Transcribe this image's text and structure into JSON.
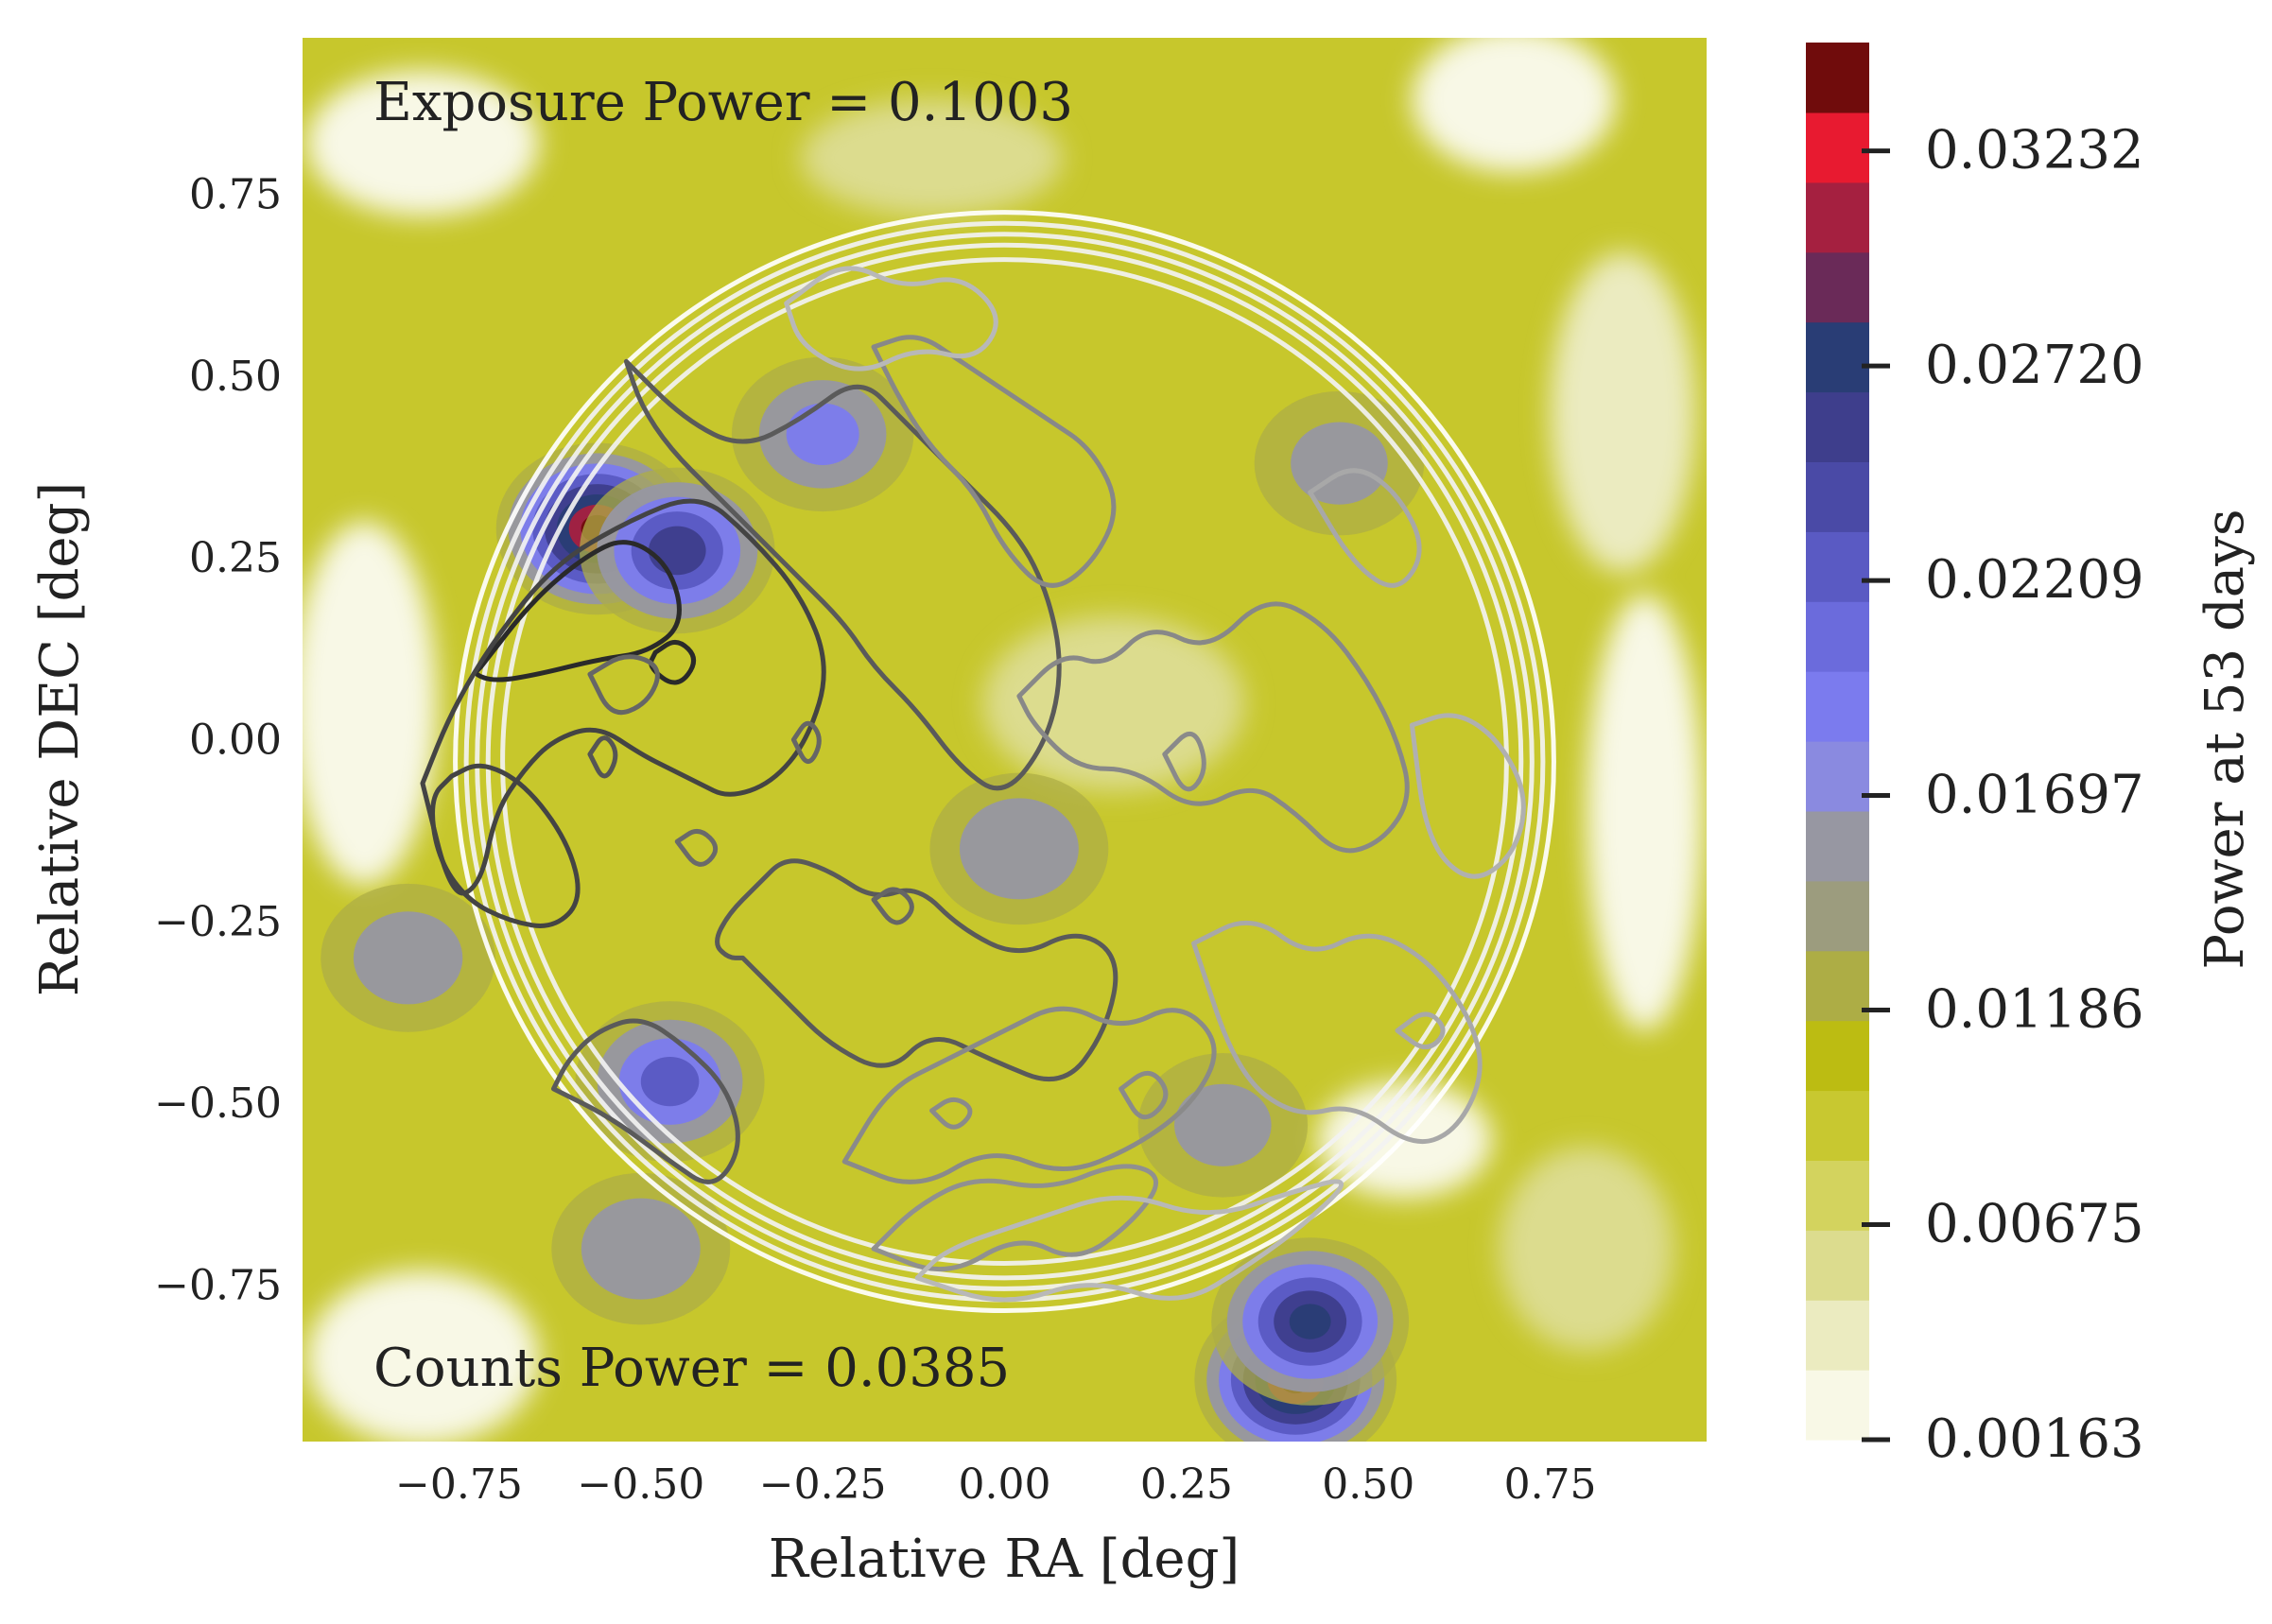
{
  "chart_data": {
    "type": "heatmap",
    "title": "",
    "xlabel": "Relative RA [deg]",
    "ylabel": "Relative DEC [deg]",
    "xlim": [
      -0.965,
      0.965
    ],
    "ylim": [
      -0.965,
      0.965
    ],
    "xticks": [
      -0.75,
      -0.5,
      -0.25,
      0.0,
      0.25,
      0.5,
      0.75
    ],
    "xtick_labels": [
      "−0.75",
      "−0.50",
      "−0.25",
      "0.00",
      "0.25",
      "0.50",
      "0.75"
    ],
    "yticks": [
      0.75,
      0.5,
      0.25,
      0.0,
      -0.25,
      -0.5,
      -0.75
    ],
    "ytick_labels": [
      "0.75",
      "0.50",
      "0.25",
      "0.00",
      "−0.25",
      "−0.50",
      "−0.75"
    ],
    "annotations": {
      "exposure": "Exposure Power = 0.1003",
      "counts": "Counts Power = 0.0385"
    },
    "colorbar": {
      "label": "Power at 53 days",
      "min": 0.00163,
      "max": 0.0349,
      "ticks": [
        0.00163,
        0.00675,
        0.01186,
        0.01697,
        0.02209,
        0.0272,
        0.03232
      ],
      "tick_labels": [
        "0.00163",
        "0.00675",
        "0.01186",
        "0.01697",
        "0.02209",
        "0.02720",
        "0.03232"
      ],
      "colors": [
        "#f8f8e6",
        "#ebebc0",
        "#dcdc8e",
        "#d3d35e",
        "#c8c830",
        "#bcbc12",
        "#adad45",
        "#9c9c7e",
        "#9797a2",
        "#8a8ae0",
        "#7b7bee",
        "#6b6bdc",
        "#5a5ac3",
        "#4a4aa6",
        "#3e3e8c",
        "#293d75",
        "#6a2a58",
        "#a52040",
        "#e81a30",
        "#700c0c"
      ]
    },
    "power_peaks": [
      {
        "ra": -0.56,
        "dec": 0.29,
        "power": 0.034
      },
      {
        "ra": 0.4,
        "dec": -0.88,
        "power": 0.034
      },
      {
        "ra": -0.45,
        "dec": 0.26,
        "power": 0.026
      },
      {
        "ra": 0.42,
        "dec": -0.8,
        "power": 0.028
      },
      {
        "ra": -0.46,
        "dec": -0.47,
        "power": 0.022
      },
      {
        "ra": -0.5,
        "dec": -0.7,
        "power": 0.018
      },
      {
        "ra": -0.82,
        "dec": -0.3,
        "power": 0.017
      },
      {
        "ra": -0.25,
        "dec": 0.42,
        "power": 0.019
      },
      {
        "ra": 0.02,
        "dec": -0.15,
        "power": 0.018
      },
      {
        "ra": 0.46,
        "dec": 0.38,
        "power": 0.016
      },
      {
        "ra": 0.3,
        "dec": -0.53,
        "power": 0.016
      }
    ],
    "exposure_contours": {
      "center": [
        0.0,
        -0.03
      ],
      "radii": [
        0.755,
        0.74,
        0.725,
        0.71,
        0.69
      ]
    },
    "counts_contours": [
      {
        "level": "high",
        "color": "#2a2a2a",
        "x": [
          -0.72,
          -0.65,
          -0.58,
          -0.52,
          -0.46,
          -0.44,
          -0.49,
          -0.56,
          -0.64,
          -0.7,
          -0.73,
          -0.72
        ],
        "y": [
          0.1,
          0.19,
          0.25,
          0.28,
          0.24,
          0.16,
          0.12,
          0.11,
          0.09,
          0.08,
          0.09,
          0.1
        ]
      },
      {
        "level": "high",
        "color": "#2a2a2a",
        "x": [
          -0.48,
          -0.45,
          -0.42,
          -0.45,
          -0.49,
          -0.48
        ],
        "y": [
          0.12,
          0.14,
          0.11,
          0.07,
          0.1,
          0.12
        ]
      },
      {
        "level": "mid",
        "color": "#444444",
        "x": [
          -0.8,
          -0.76,
          -0.7,
          -0.62,
          -0.52,
          -0.42,
          -0.35,
          -0.28,
          -0.24,
          -0.27,
          -0.32,
          -0.38,
          -0.42,
          -0.46,
          -0.5,
          -0.56,
          -0.62,
          -0.66,
          -0.7,
          -0.72,
          -0.76,
          -0.8
        ],
        "y": [
          -0.06,
          0.04,
          0.14,
          0.24,
          0.3,
          0.34,
          0.28,
          0.2,
          0.1,
          0.0,
          -0.06,
          -0.08,
          -0.06,
          -0.04,
          -0.02,
          0.02,
          0.0,
          -0.04,
          -0.1,
          -0.2,
          -0.22,
          -0.06
        ]
      },
      {
        "level": "mid",
        "color": "#444444",
        "x": [
          -0.76,
          -0.72,
          -0.66,
          -0.6,
          -0.58,
          -0.62,
          -0.68,
          -0.74,
          -0.78,
          -0.79,
          -0.76
        ],
        "y": [
          -0.05,
          -0.03,
          -0.06,
          -0.14,
          -0.22,
          -0.26,
          -0.25,
          -0.22,
          -0.16,
          -0.08,
          -0.05
        ]
      },
      {
        "level": "mid",
        "color": "#555555",
        "x": [
          -0.57,
          -0.55,
          -0.53,
          -0.55,
          -0.57
        ],
        "y": [
          -0.02,
          0.01,
          -0.02,
          -0.06,
          -0.02
        ]
      },
      {
        "level": "low",
        "color": "#5a5a5a",
        "x": [
          -0.52,
          -0.44,
          -0.36,
          -0.28,
          -0.2,
          -0.14,
          -0.06,
          0.02,
          0.06,
          0.08,
          0.06,
          0.0,
          -0.06,
          -0.12,
          -0.18,
          -0.22,
          -0.28,
          -0.34,
          -0.4,
          -0.46,
          -0.5,
          -0.52
        ],
        "y": [
          0.52,
          0.44,
          0.4,
          0.44,
          0.5,
          0.44,
          0.36,
          0.28,
          0.2,
          0.1,
          0.0,
          -0.08,
          -0.04,
          0.04,
          0.1,
          0.16,
          0.22,
          0.28,
          0.34,
          0.4,
          0.46,
          0.52
        ]
      },
      {
        "level": "low",
        "color": "#5a5a5a",
        "x": [
          -0.36,
          -0.3,
          -0.24,
          -0.16,
          -0.1,
          -0.02,
          0.08,
          0.14,
          0.16,
          0.1,
          0.02,
          -0.06,
          -0.12,
          -0.18,
          -0.24,
          -0.3,
          -0.34,
          -0.38,
          -0.4,
          -0.38,
          -0.36
        ],
        "y": [
          -0.3,
          -0.36,
          -0.42,
          -0.46,
          -0.4,
          -0.44,
          -0.48,
          -0.4,
          -0.3,
          -0.26,
          -0.3,
          -0.26,
          -0.2,
          -0.22,
          -0.18,
          -0.16,
          -0.2,
          -0.24,
          -0.28,
          -0.3,
          -0.3
        ]
      },
      {
        "level": "low",
        "color": "#5a5a5a",
        "x": [
          -0.62,
          -0.54,
          -0.46,
          -0.4,
          -0.36,
          -0.38,
          -0.44,
          -0.5,
          -0.56,
          -0.6,
          -0.62
        ],
        "y": [
          -0.48,
          -0.52,
          -0.58,
          -0.62,
          -0.56,
          -0.48,
          -0.42,
          -0.38,
          -0.4,
          -0.44,
          -0.48
        ]
      },
      {
        "level": "low",
        "color": "#666666",
        "x": [
          -0.18,
          -0.15,
          -0.12,
          -0.15,
          -0.18
        ],
        "y": [
          -0.22,
          -0.2,
          -0.23,
          -0.26,
          -0.22
        ]
      },
      {
        "level": "low",
        "color": "#666666",
        "x": [
          -0.29,
          -0.27,
          -0.25,
          -0.27,
          -0.29
        ],
        "y": [
          0.0,
          0.03,
          0.0,
          -0.04,
          0.0
        ]
      },
      {
        "level": "low",
        "color": "#666666",
        "x": [
          -0.57,
          -0.52,
          -0.47,
          -0.49,
          -0.54,
          -0.57
        ],
        "y": [
          0.09,
          0.12,
          0.1,
          0.05,
          0.03,
          0.09
        ]
      },
      {
        "level": "low",
        "color": "#6a6a6a",
        "x": [
          -0.45,
          -0.42,
          -0.39,
          -0.42,
          -0.45
        ],
        "y": [
          -0.14,
          -0.12,
          -0.15,
          -0.18,
          -0.14
        ]
      },
      {
        "level": "lowest",
        "color": "#888888",
        "x": [
          -0.18,
          -0.12,
          -0.06,
          0.0,
          0.06,
          0.12,
          0.16,
          0.12,
          0.06,
          0.0,
          -0.04,
          -0.1,
          -0.14,
          -0.18
        ],
        "y": [
          0.54,
          0.56,
          0.52,
          0.48,
          0.44,
          0.4,
          0.32,
          0.24,
          0.2,
          0.26,
          0.34,
          0.4,
          0.46,
          0.54
        ]
      },
      {
        "level": "lowest",
        "color": "#888888",
        "x": [
          0.02,
          0.08,
          0.14,
          0.2,
          0.28,
          0.36,
          0.44,
          0.5,
          0.54,
          0.56,
          0.52,
          0.46,
          0.4,
          0.34,
          0.26,
          0.18,
          0.1,
          0.04,
          0.02
        ],
        "y": [
          0.06,
          0.12,
          0.1,
          0.16,
          0.12,
          0.2,
          0.16,
          0.08,
          0.0,
          -0.08,
          -0.14,
          -0.16,
          -0.1,
          -0.06,
          -0.1,
          -0.04,
          -0.04,
          0.02,
          0.06
        ]
      },
      {
        "level": "lowest",
        "color": "#8a8a8a",
        "x": [
          -0.22,
          -0.12,
          -0.02,
          0.08,
          0.18,
          0.26,
          0.3,
          0.24,
          0.16,
          0.08,
          0.0,
          -0.08,
          -0.16,
          -0.22
        ],
        "y": [
          -0.58,
          -0.62,
          -0.56,
          -0.6,
          -0.56,
          -0.5,
          -0.42,
          -0.36,
          -0.4,
          -0.36,
          -0.4,
          -0.44,
          -0.48,
          -0.58
        ]
      },
      {
        "level": "lowest",
        "color": "#8a8a8a",
        "x": [
          0.22,
          0.26,
          0.28,
          0.25,
          0.22
        ],
        "y": [
          -0.02,
          0.02,
          -0.04,
          -0.08,
          -0.02
        ]
      },
      {
        "level": "lowest",
        "color": "#8a8a8a",
        "x": [
          -0.1,
          -0.07,
          -0.04,
          -0.07,
          -0.1
        ],
        "y": [
          -0.51,
          -0.49,
          -0.51,
          -0.54,
          -0.51
        ]
      },
      {
        "level": "lowest",
        "color": "#8a8a8a",
        "x": [
          0.16,
          0.2,
          0.23,
          0.19,
          0.16
        ],
        "y": [
          -0.48,
          -0.45,
          -0.49,
          -0.53,
          -0.48
        ]
      },
      {
        "level": "lowest",
        "color": "#909090",
        "x": [
          -0.18,
          -0.08,
          0.02,
          0.1,
          0.18,
          0.22,
          0.16,
          0.06,
          -0.04,
          -0.12,
          -0.18
        ],
        "y": [
          -0.7,
          -0.74,
          -0.68,
          -0.72,
          -0.66,
          -0.6,
          -0.58,
          -0.62,
          -0.6,
          -0.64,
          -0.7
        ]
      },
      {
        "level": "outer",
        "color": "#a8a8a8",
        "x": [
          0.26,
          0.34,
          0.42,
          0.5,
          0.58,
          0.64,
          0.66,
          0.62,
          0.56,
          0.48,
          0.4,
          0.32,
          0.26
        ],
        "y": [
          -0.28,
          -0.24,
          -0.3,
          -0.26,
          -0.3,
          -0.38,
          -0.46,
          -0.54,
          -0.56,
          -0.5,
          -0.52,
          -0.46,
          -0.28
        ]
      },
      {
        "level": "outer",
        "color": "#a8a8a8",
        "x": [
          0.42,
          0.48,
          0.54,
          0.58,
          0.54,
          0.48,
          0.42
        ],
        "y": [
          0.34,
          0.38,
          0.34,
          0.26,
          0.2,
          0.24,
          0.34
        ]
      },
      {
        "level": "outer",
        "color": "#a8a8a8",
        "x": [
          0.54,
          0.58,
          0.61,
          0.58,
          0.54
        ],
        "y": [
          -0.4,
          -0.37,
          -0.4,
          -0.43,
          -0.4
        ]
      },
      {
        "level": "outer",
        "color": "#b0b0b0",
        "x": [
          0.56,
          0.62,
          0.68,
          0.72,
          0.7,
          0.64,
          0.58,
          0.56
        ],
        "y": [
          0.02,
          0.04,
          0.0,
          -0.08,
          -0.16,
          -0.2,
          -0.14,
          0.02
        ]
      },
      {
        "level": "outer",
        "color": "#b8b8b8",
        "x": [
          -0.12,
          0.0,
          0.12,
          0.24,
          0.34,
          0.42,
          0.48,
          0.4,
          0.28,
          0.16,
          0.04,
          -0.08,
          -0.12
        ],
        "y": [
          -0.74,
          -0.78,
          -0.74,
          -0.78,
          -0.72,
          -0.66,
          -0.6,
          -0.62,
          -0.66,
          -0.62,
          -0.66,
          -0.7,
          -0.74
        ]
      },
      {
        "level": "outer",
        "color": "#b8b8b8",
        "x": [
          -0.3,
          -0.22,
          -0.14,
          -0.06,
          0.0,
          -0.04,
          -0.12,
          -0.2,
          -0.28,
          -0.3
        ],
        "y": [
          0.6,
          0.66,
          0.62,
          0.64,
          0.58,
          0.52,
          0.54,
          0.5,
          0.54,
          0.6
        ]
      }
    ]
  }
}
